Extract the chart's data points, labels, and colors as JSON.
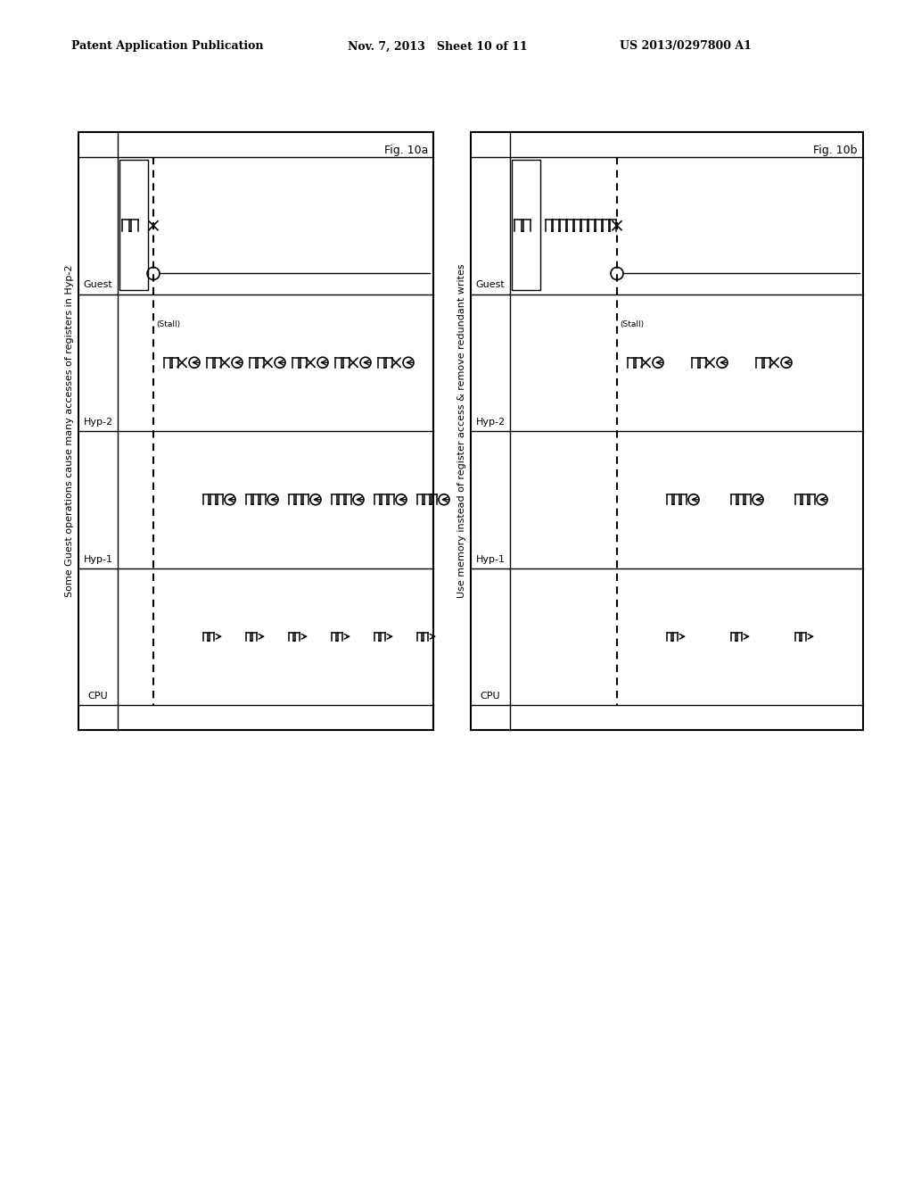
{
  "header_left": "Patent Application Publication",
  "header_mid": "Nov. 7, 2013   Sheet 10 of 11",
  "header_right": "US 2013/0297800 A1",
  "fig10a_label": "Fig. 10a",
  "fig10b_label": "Fig. 10b",
  "fig10a_title": "Some Guest operations cause many accesses of registers in Hyp-2",
  "fig10b_title": "Use memory instead of register access & remove redundant writes",
  "rows": [
    "Guest",
    "Hyp-2",
    "Hyp-1",
    "CPU"
  ],
  "stall_label": "(Stall)"
}
